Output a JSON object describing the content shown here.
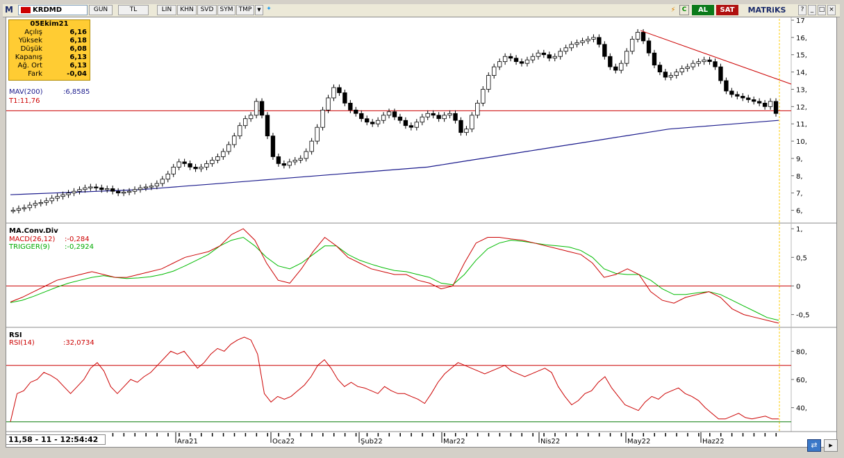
{
  "toolbar": {
    "logo": "M",
    "symbol": "KRDMD",
    "buttons": [
      "GUN",
      "TL",
      "LIN",
      "KHN",
      "SVD",
      "SYM",
      "TMP"
    ],
    "al_label": "AL",
    "sat_label": "SAT",
    "brand": "MATRiKS",
    "c_label": "C",
    "window_controls": [
      "?",
      "_",
      "□",
      "×"
    ]
  },
  "colors": {
    "candle_stroke": "#000000",
    "mav_line": "#1a1a8c",
    "trend_line": "#cc0000",
    "support_line": "#cc0000",
    "macd_line": "#cc0000",
    "trigger_line": "#00bb00",
    "rsi_line": "#cc0000",
    "rsi_upper": "#cc0000",
    "rsi_lower": "#007700",
    "info_bg": "#ffcc33"
  },
  "info_box": {
    "date": "05Ekim21",
    "rows": [
      {
        "label": "Açılış",
        "value": "6,16"
      },
      {
        "label": "Yüksek",
        "value": "6,18"
      },
      {
        "label": "Düşük",
        "value": "6,08"
      },
      {
        "label": "Kapanış",
        "value": "6,13"
      },
      {
        "label": "Ağ. Ort",
        "value": "6,13"
      },
      {
        "label": "Fark",
        "value": "-0,04"
      }
    ]
  },
  "price_panel": {
    "mav_label": "MAV(200)",
    "mav_value": ":6,8585",
    "t1_label": "T1:11,76",
    "y_ticks": [
      "17",
      "16,",
      "15,",
      "14,",
      "13,",
      "12,",
      "11,",
      "10,",
      "9,",
      "8,",
      "7,",
      "6,"
    ]
  },
  "macd_panel": {
    "title": "MA.Conv.Div",
    "macd_label": "MACD(26,12)",
    "macd_value": ":-0,284",
    "trigger_label": "TRIGGER(9)",
    "trigger_value": ":-0,2924",
    "y_ticks": [
      "1,",
      "0,5",
      "0",
      "-0,5"
    ]
  },
  "rsi_panel": {
    "title": "RSI",
    "rsi_label": "RSI(14)",
    "rsi_value": ":32,0734",
    "y_ticks": [
      "80,",
      "60,",
      "40,"
    ]
  },
  "x_axis": {
    "labels": [
      "Ara21",
      "Oca22",
      "Şub22",
      "Mar22",
      "Nis22",
      "May22",
      "Haz22"
    ]
  },
  "status": {
    "cursor_readout": "11,58 - 11 - 12:54:42"
  },
  "chart_data": {
    "type": "candlestick",
    "price_ylim": [
      5.5,
      17
    ],
    "support_level": 11.76,
    "closes": [
      6.0,
      6.1,
      6.15,
      6.3,
      6.4,
      6.45,
      6.55,
      6.7,
      6.8,
      6.9,
      7.0,
      7.1,
      7.2,
      7.3,
      7.35,
      7.3,
      7.2,
      7.25,
      7.1,
      7.0,
      7.05,
      7.1,
      7.2,
      7.3,
      7.35,
      7.4,
      7.55,
      7.8,
      8.1,
      8.5,
      8.8,
      8.7,
      8.5,
      8.4,
      8.5,
      8.7,
      8.9,
      9.1,
      9.4,
      9.8,
      10.3,
      10.9,
      11.3,
      11.5,
      12.3,
      11.5,
      10.3,
      9.1,
      8.7,
      8.6,
      8.8,
      8.9,
      9.0,
      9.4,
      10.0,
      10.8,
      11.8,
      12.5,
      13.1,
      12.8,
      12.2,
      11.8,
      11.6,
      11.3,
      11.1,
      11.0,
      11.2,
      11.5,
      11.7,
      11.4,
      11.2,
      10.9,
      10.8,
      11.1,
      11.4,
      11.6,
      11.5,
      11.3,
      11.5,
      11.6,
      11.2,
      10.5,
      10.7,
      11.5,
      12.2,
      13.0,
      13.8,
      14.3,
      14.6,
      14.9,
      14.8,
      14.6,
      14.5,
      14.7,
      14.9,
      15.1,
      15.0,
      14.8,
      14.9,
      15.2,
      15.4,
      15.6,
      15.7,
      15.8,
      15.9,
      16.0,
      15.6,
      14.9,
      14.3,
      14.1,
      14.5,
      15.2,
      15.9,
      16.3,
      15.8,
      15.1,
      14.4,
      14.0,
      13.7,
      13.8,
      14.0,
      14.2,
      14.3,
      14.5,
      14.6,
      14.7,
      14.6,
      14.3,
      13.5,
      12.9,
      12.7,
      12.6,
      12.5,
      12.4,
      12.3,
      12.2,
      12.0,
      12.3,
      11.6
    ],
    "mav200": [
      6.9,
      6.95,
      7.0,
      7.05,
      7.1,
      7.15,
      7.2,
      7.3,
      7.4,
      7.5,
      7.6,
      7.7,
      7.8,
      7.9,
      8.0,
      8.1,
      8.2,
      8.3,
      8.4,
      8.5,
      8.7,
      8.9,
      9.1,
      9.3,
      9.5,
      9.7,
      9.9,
      10.1,
      10.3,
      10.5,
      10.7,
      10.8,
      10.9,
      11.0,
      11.1,
      11.2
    ],
    "macd": [
      -0.28,
      -0.2,
      -0.1,
      0.0,
      0.1,
      0.15,
      0.2,
      0.25,
      0.2,
      0.15,
      0.15,
      0.2,
      0.25,
      0.3,
      0.4,
      0.5,
      0.55,
      0.6,
      0.7,
      0.9,
      1.0,
      0.8,
      0.4,
      0.1,
      0.05,
      0.3,
      0.6,
      0.85,
      0.7,
      0.5,
      0.4,
      0.3,
      0.25,
      0.2,
      0.2,
      0.1,
      0.05,
      -0.05,
      0.0,
      0.4,
      0.75,
      0.85,
      0.85,
      0.82,
      0.8,
      0.75,
      0.7,
      0.65,
      0.6,
      0.55,
      0.4,
      0.15,
      0.2,
      0.3,
      0.2,
      -0.1,
      -0.25,
      -0.3,
      -0.2,
      -0.15,
      -0.1,
      -0.2,
      -0.4,
      -0.5,
      -0.55,
      -0.6,
      -0.65
    ],
    "trigger": [
      -0.29,
      -0.25,
      -0.18,
      -0.1,
      -0.02,
      0.05,
      0.1,
      0.15,
      0.18,
      0.15,
      0.13,
      0.14,
      0.16,
      0.2,
      0.26,
      0.35,
      0.45,
      0.55,
      0.7,
      0.8,
      0.85,
      0.7,
      0.5,
      0.35,
      0.3,
      0.4,
      0.55,
      0.7,
      0.7,
      0.55,
      0.45,
      0.38,
      0.32,
      0.27,
      0.25,
      0.2,
      0.15,
      0.05,
      0.02,
      0.2,
      0.45,
      0.65,
      0.75,
      0.8,
      0.78,
      0.75,
      0.72,
      0.7,
      0.68,
      0.62,
      0.5,
      0.3,
      0.22,
      0.2,
      0.2,
      0.1,
      -0.05,
      -0.15,
      -0.15,
      -0.12,
      -0.1,
      -0.15,
      -0.25,
      -0.35,
      -0.45,
      -0.55,
      -0.6
    ],
    "rsi": [
      30,
      50,
      52,
      58,
      60,
      65,
      63,
      60,
      55,
      50,
      55,
      60,
      68,
      72,
      66,
      55,
      50,
      55,
      60,
      58,
      62,
      65,
      70,
      75,
      80,
      78,
      80,
      74,
      68,
      72,
      78,
      82,
      80,
      85,
      88,
      90,
      88,
      78,
      50,
      44,
      48,
      46,
      48,
      52,
      56,
      62,
      70,
      74,
      68,
      60,
      55,
      58,
      55,
      54,
      52,
      50,
      55,
      52,
      50,
      50,
      48,
      46,
      43,
      50,
      58,
      64,
      68,
      72,
      70,
      68,
      66,
      64,
      66,
      68,
      70,
      66,
      64,
      62,
      64,
      66,
      68,
      65,
      55,
      48,
      42,
      45,
      50,
      52,
      58,
      62,
      54,
      48,
      42,
      40,
      38,
      44,
      48,
      46,
      50,
      52,
      54,
      50,
      48,
      45,
      40,
      36,
      32,
      32,
      34,
      36,
      33,
      32,
      33,
      34,
      32,
      32
    ]
  }
}
